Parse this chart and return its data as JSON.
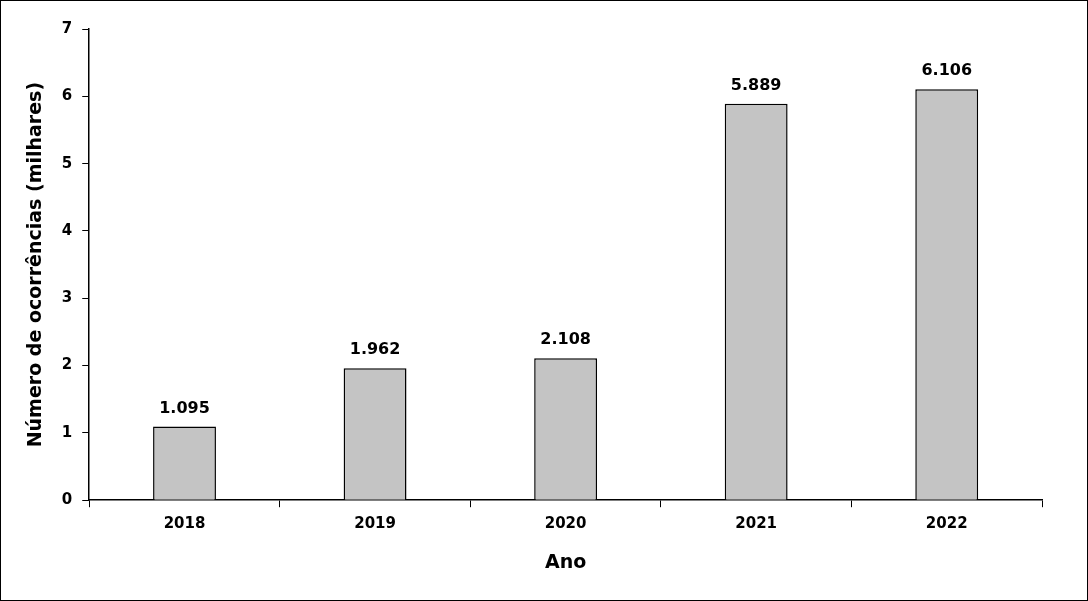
{
  "chart_data": {
    "type": "bar",
    "xlabel": "Ano",
    "ylabel": "Número de ocorrências (milhares)",
    "categories": [
      "2018",
      "2019",
      "2020",
      "2021",
      "2022"
    ],
    "values": [
      1.095,
      1.962,
      2.108,
      5.889,
      6.106
    ],
    "value_labels": [
      "1.095",
      "1.962",
      "2.108",
      "5.889",
      "6.106"
    ],
    "color": "#c4c4c4",
    "ylim": [
      0,
      7
    ],
    "yticks": [
      0,
      1,
      2,
      3,
      4,
      5,
      6,
      7
    ],
    "grid": false,
    "legend": false
  }
}
